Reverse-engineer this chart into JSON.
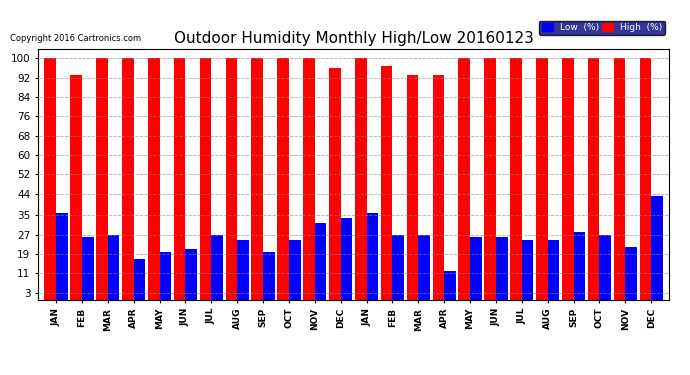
{
  "title": "Outdoor Humidity Monthly High/Low 20160123",
  "copyright": "Copyright 2016 Cartronics.com",
  "months": [
    "JAN",
    "FEB",
    "MAR",
    "APR",
    "MAY",
    "JUN",
    "JUL",
    "AUG",
    "SEP",
    "OCT",
    "NOV",
    "DEC",
    "JAN",
    "FEB",
    "MAR",
    "APR",
    "MAY",
    "JUN",
    "JUL",
    "AUG",
    "SEP",
    "OCT",
    "NOV",
    "DEC"
  ],
  "high_values": [
    100,
    93,
    100,
    100,
    100,
    100,
    100,
    100,
    100,
    100,
    100,
    96,
    100,
    97,
    93,
    93,
    100,
    100,
    100,
    100,
    100,
    100,
    100,
    100
  ],
  "low_values": [
    36,
    26,
    27,
    17,
    20,
    21,
    27,
    25,
    20,
    25,
    32,
    34,
    36,
    27,
    27,
    12,
    26,
    26,
    25,
    25,
    28,
    27,
    22,
    43
  ],
  "high_color": "#ff0000",
  "low_color": "#0000ff",
  "bg_color": "#ffffff",
  "plot_bg_color": "#ffffff",
  "title_fontsize": 11,
  "yticks": [
    3,
    11,
    19,
    27,
    35,
    44,
    52,
    60,
    68,
    76,
    84,
    92,
    100
  ],
  "ylim": [
    0,
    104
  ],
  "grid_color": "#888888",
  "legend_low_label": "Low  (%)",
  "legend_high_label": "High  (%)"
}
